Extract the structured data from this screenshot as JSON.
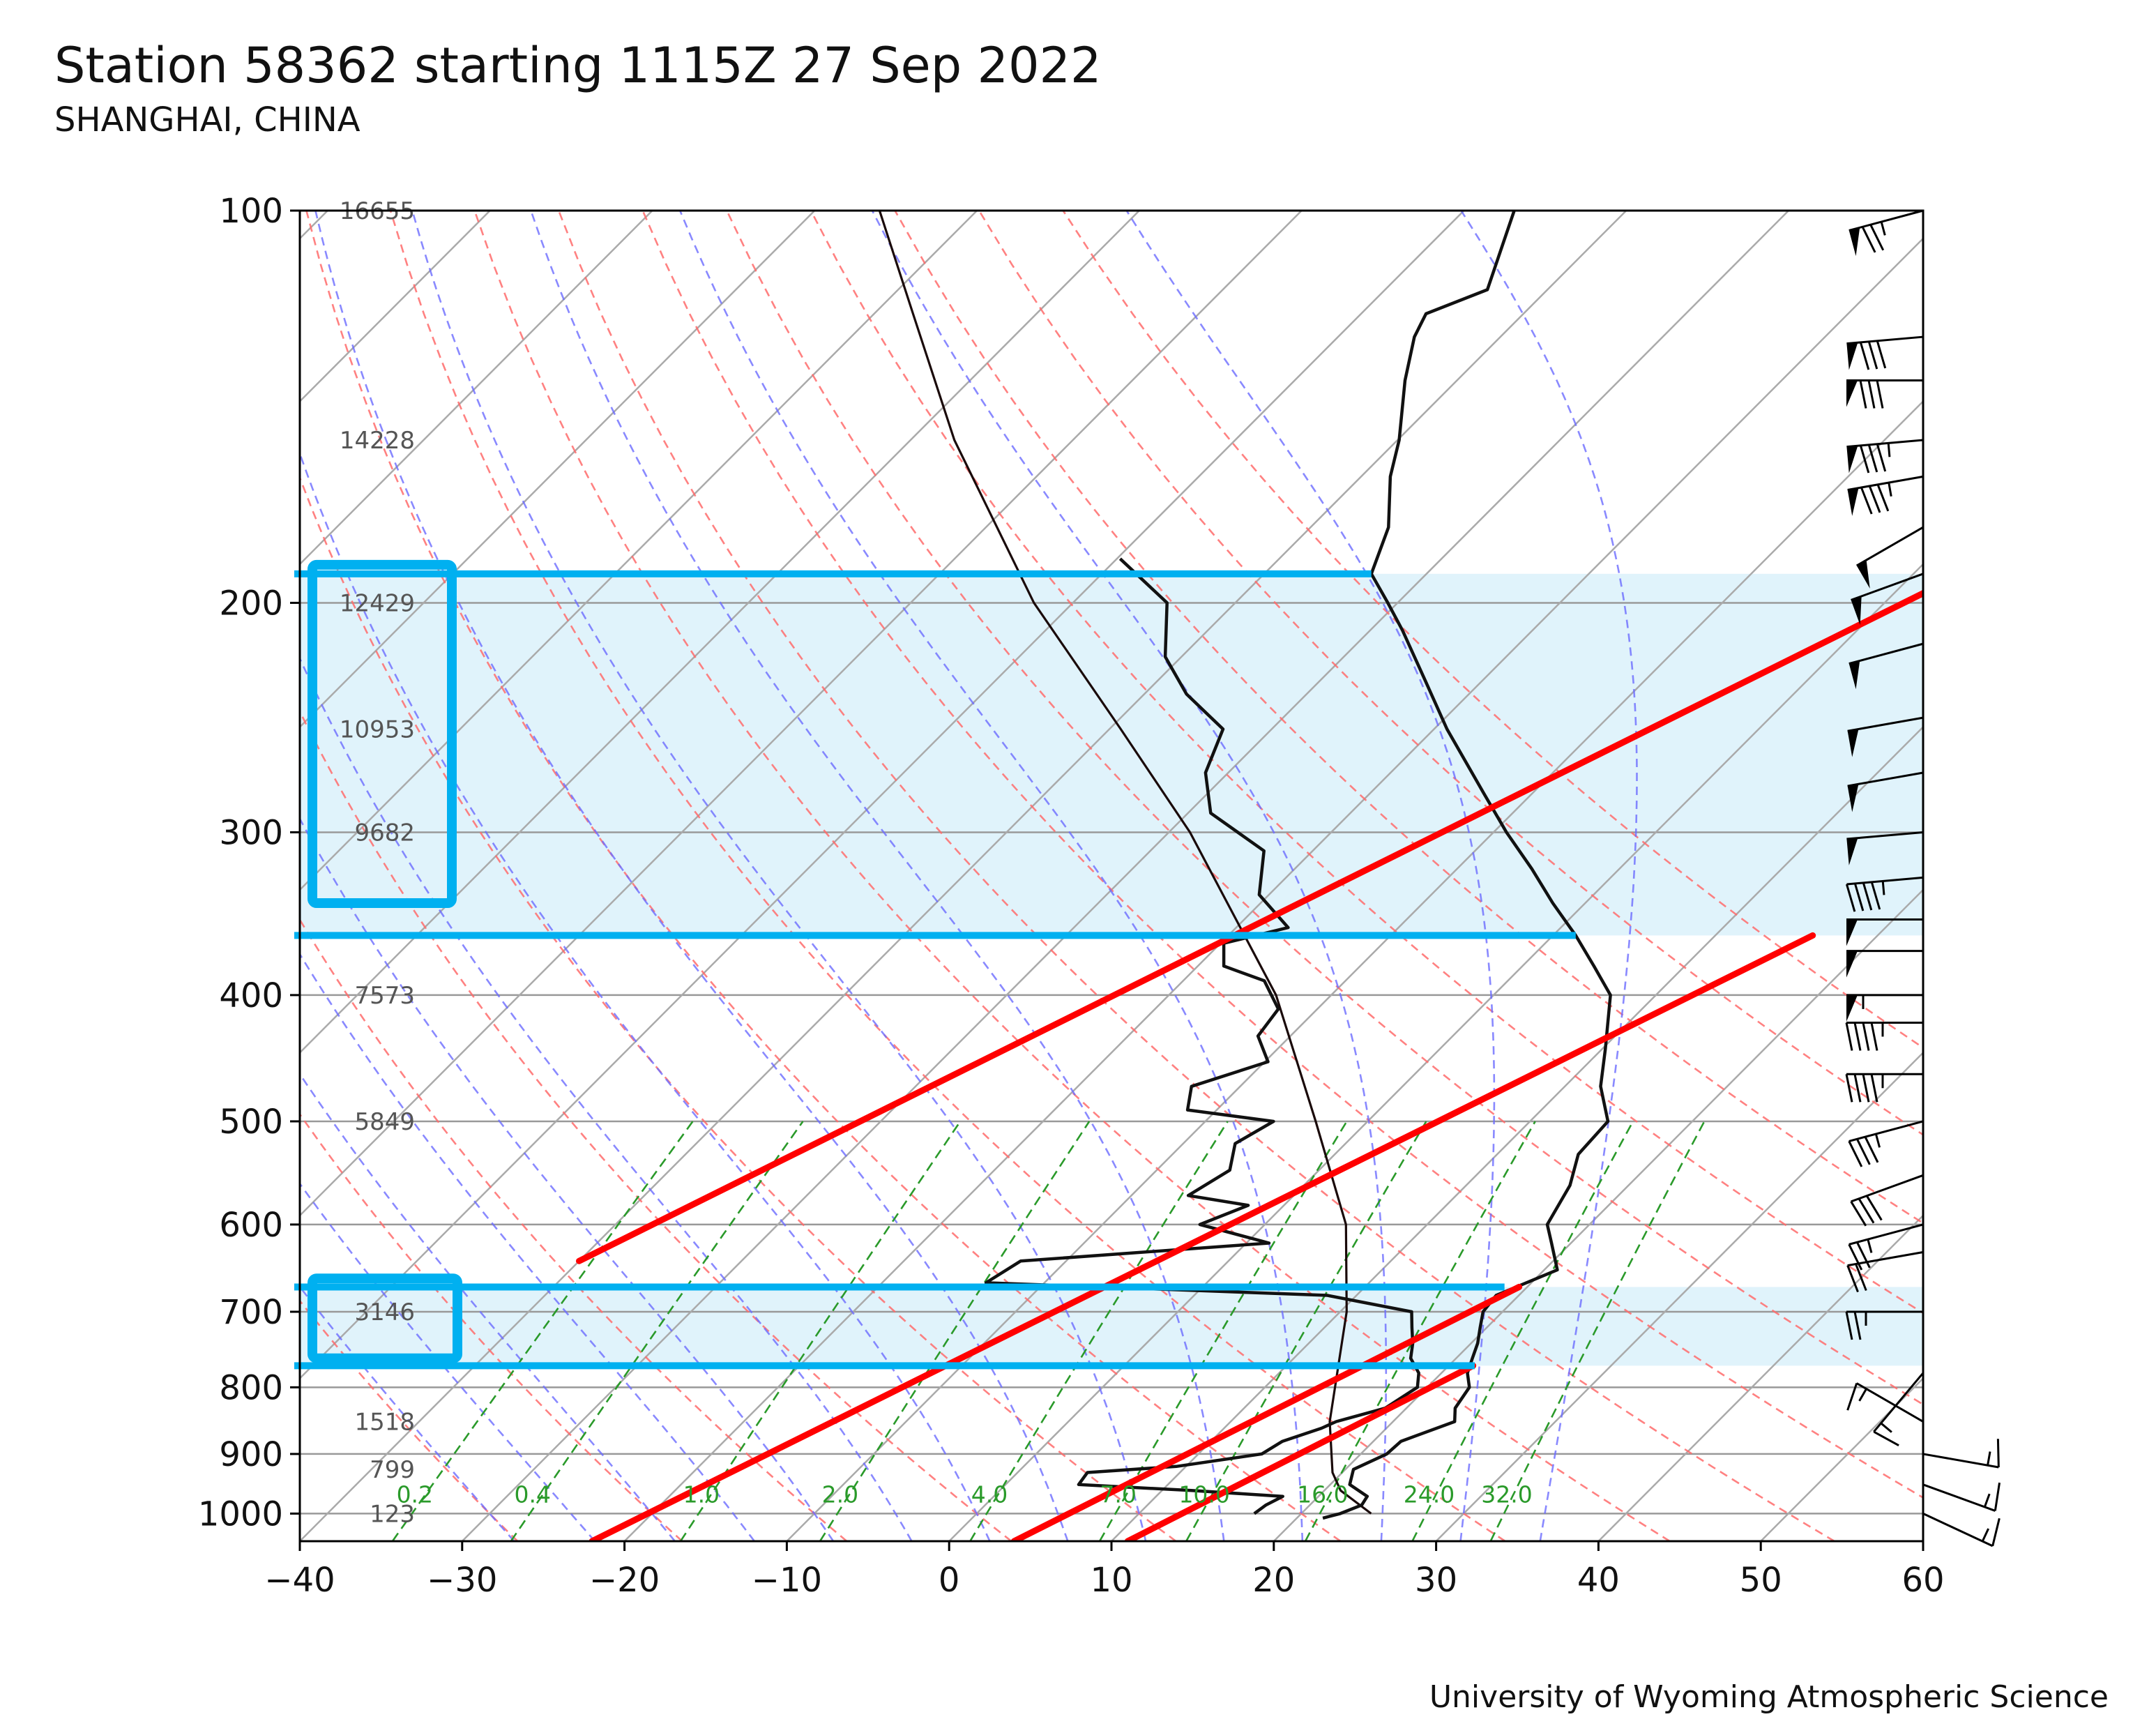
{
  "title": "Station 58362 starting 1115Z 27 Sep 2022",
  "subtitle": "SHANGHAI, CHINA",
  "credit": "University of Wyoming Atmospheric Science",
  "colors": {
    "temp": "#111111",
    "dry_adiabat": "#ff6b6b",
    "moist_adiabat": "#6b6bff",
    "mixing_ratio": "#2a9a2a",
    "isotherm": "#aaaaaa",
    "highlight_box": "#00b0f0",
    "highlight_fill": "#d6effa",
    "annotation_line": "#ff0000"
  },
  "chart_data": {
    "type": "skew-t log-p",
    "title": "Station 58362 starting 1115Z 27 Sep 2022",
    "subtitle": "SHANGHAI, CHINA",
    "x_range": [
      -40,
      60
    ],
    "p_range": [
      1050,
      100
    ],
    "x_ticks": [
      -40,
      -30,
      -20,
      -10,
      0,
      10,
      20,
      30,
      40,
      50,
      60
    ],
    "x_tick_labels": [
      "−40",
      "−30",
      "−20",
      "−10",
      "0",
      "10",
      "20",
      "30",
      "40",
      "50",
      "60"
    ],
    "p_ticks": [
      100,
      200,
      300,
      400,
      500,
      600,
      700,
      800,
      900,
      1000
    ],
    "height_labels": [
      {
        "p": 100,
        "text": "16655"
      },
      {
        "p": 150,
        "text": "14228"
      },
      {
        "p": 200,
        "text": "12429"
      },
      {
        "p": 250,
        "text": "10953"
      },
      {
        "p": 300,
        "text": "9682"
      },
      {
        "p": 400,
        "text": "7573"
      },
      {
        "p": 500,
        "text": "5849"
      },
      {
        "p": 700,
        "text": "3146"
      },
      {
        "p": 850,
        "text": "1518"
      },
      {
        "p": 925,
        "text": "799"
      },
      {
        "p": 1000,
        "text": "123"
      }
    ],
    "mixing_ratio_labels": [
      "0.2",
      "0.4",
      "1.0",
      "2.0",
      "4.0",
      "7.0",
      "10.0",
      "16.0",
      "24.0",
      "32.0"
    ],
    "mixing_ratio_values": [
      0.2,
      0.4,
      1.0,
      2.0,
      4.0,
      7.0,
      10.0,
      16.0,
      24.0,
      32.0
    ],
    "dry_adiabats_theta_c": [
      -30,
      -20,
      -10,
      0,
      10,
      20,
      30,
      40,
      50,
      60,
      70,
      80,
      90,
      100,
      110
    ],
    "moist_adiabats_c": [
      -30,
      -25,
      -20,
      -15,
      -10,
      -5,
      0,
      5,
      10,
      15,
      20,
      25,
      30,
      35
    ],
    "temperature": [
      [
        1008,
        21.6
      ],
      [
        1000,
        22.4
      ],
      [
        985,
        23.2
      ],
      [
        970,
        23.0
      ],
      [
        950,
        21.2
      ],
      [
        925,
        20.5
      ],
      [
        900,
        21.6
      ],
      [
        880,
        21.7
      ],
      [
        850,
        23.8
      ],
      [
        830,
        23.0
      ],
      [
        800,
        22.6
      ],
      [
        780,
        21.6
      ],
      [
        760,
        21.0
      ],
      [
        740,
        20.4
      ],
      [
        720,
        19.6
      ],
      [
        700,
        18.8
      ],
      [
        680,
        18.6
      ],
      [
        650,
        20.8
      ],
      [
        620,
        18.8
      ],
      [
        600,
        17.4
      ],
      [
        560,
        16.4
      ],
      [
        530,
        15.0
      ],
      [
        500,
        14.8
      ],
      [
        470,
        12.2
      ],
      [
        440,
        10.2
      ],
      [
        400,
        7.2
      ],
      [
        380,
        4.4
      ],
      [
        360,
        1.4
      ],
      [
        340,
        -2.0
      ],
      [
        320,
        -5.4
      ],
      [
        300,
        -9.2
      ],
      [
        280,
        -13.0
      ],
      [
        250,
        -19.2
      ],
      [
        230,
        -23.4
      ],
      [
        210,
        -28.0
      ],
      [
        200,
        -30.6
      ],
      [
        190,
        -33.4
      ],
      [
        175,
        -35.2
      ],
      [
        160,
        -38.2
      ],
      [
        150,
        -39.9
      ],
      [
        135,
        -43.2
      ],
      [
        125,
        -45.3
      ],
      [
        120,
        -46.0
      ],
      [
        115,
        -43.7
      ],
      [
        100,
        -46.9
      ]
    ],
    "dewpoint": [
      [
        1000,
        17.1
      ],
      [
        985,
        17.3
      ],
      [
        970,
        17.8
      ],
      [
        960,
        11.8
      ],
      [
        950,
        4.5
      ],
      [
        930,
        4.3
      ],
      [
        920,
        9.4
      ],
      [
        900,
        13.9
      ],
      [
        880,
        14.4
      ],
      [
        860,
        16.0
      ],
      [
        850,
        16.5
      ],
      [
        830,
        18.7
      ],
      [
        800,
        19.4
      ],
      [
        780,
        18.6
      ],
      [
        760,
        17.2
      ],
      [
        740,
        16.4
      ],
      [
        720,
        15.4
      ],
      [
        700,
        14.4
      ],
      [
        680,
        8.2
      ],
      [
        665,
        -13.6
      ],
      [
        640,
        -12.8
      ],
      [
        620,
        1.4
      ],
      [
        600,
        -4.0
      ],
      [
        580,
        -2.2
      ],
      [
        570,
        -6.5
      ],
      [
        545,
        -5.5
      ],
      [
        520,
        -6.8
      ],
      [
        500,
        -5.8
      ],
      [
        490,
        -11.8
      ],
      [
        470,
        -13.0
      ],
      [
        450,
        -9.8
      ],
      [
        430,
        -12.0
      ],
      [
        410,
        -12.4
      ],
      [
        390,
        -15.0
      ],
      [
        380,
        -18.4
      ],
      [
        365,
        -19.8
      ],
      [
        355,
        -16.8
      ],
      [
        335,
        -20.6
      ],
      [
        310,
        -23.0
      ],
      [
        290,
        -28.6
      ],
      [
        270,
        -31.4
      ],
      [
        250,
        -33.0
      ],
      [
        235,
        -37.4
      ],
      [
        220,
        -41.0
      ],
      [
        200,
        -44.2
      ],
      [
        185,
        -49.8
      ]
    ],
    "parcel": [
      [
        1000,
        24.3
      ],
      [
        960,
        21.0
      ],
      [
        930,
        19.4
      ],
      [
        850,
        16.1
      ],
      [
        700,
        10.4
      ],
      [
        600,
        5.0
      ],
      [
        500,
        -3.2
      ],
      [
        400,
        -13.4
      ],
      [
        300,
        -28.7
      ],
      [
        250,
        -39.3
      ],
      [
        200,
        -52.4
      ],
      [
        150,
        -67.3
      ],
      [
        120,
        -77.6
      ],
      [
        100,
        -86.0
      ]
    ],
    "wind_barbs": [
      {
        "p": 100,
        "spd_kt": 75,
        "dir": 285
      },
      {
        "p": 125,
        "spd_kt": 80,
        "dir": 275
      },
      {
        "p": 135,
        "spd_kt": 80,
        "dir": 270
      },
      {
        "p": 150,
        "spd_kt": 85,
        "dir": 275
      },
      {
        "p": 160,
        "spd_kt": 85,
        "dir": 280
      },
      {
        "p": 175,
        "spd_kt": 50,
        "dir": 300
      },
      {
        "p": 190,
        "spd_kt": 50,
        "dir": 290
      },
      {
        "p": 215,
        "spd_kt": 50,
        "dir": 285
      },
      {
        "p": 245,
        "spd_kt": 50,
        "dir": 280
      },
      {
        "p": 270,
        "spd_kt": 50,
        "dir": 280
      },
      {
        "p": 300,
        "spd_kt": 50,
        "dir": 275
      },
      {
        "p": 325,
        "spd_kt": 45,
        "dir": 275
      },
      {
        "p": 350,
        "spd_kt": 50,
        "dir": 270
      },
      {
        "p": 370,
        "spd_kt": 50,
        "dir": 270
      },
      {
        "p": 400,
        "spd_kt": 55,
        "dir": 270
      },
      {
        "p": 420,
        "spd_kt": 45,
        "dir": 270
      },
      {
        "p": 460,
        "spd_kt": 45,
        "dir": 270
      },
      {
        "p": 500,
        "spd_kt": 35,
        "dir": 285
      },
      {
        "p": 550,
        "spd_kt": 30,
        "dir": 290
      },
      {
        "p": 600,
        "spd_kt": 25,
        "dir": 285
      },
      {
        "p": 630,
        "spd_kt": 20,
        "dir": 280
      },
      {
        "p": 700,
        "spd_kt": 25,
        "dir": 270
      },
      {
        "p": 780,
        "spd_kt": 15,
        "dir": 320
      },
      {
        "p": 850,
        "spd_kt": 15,
        "dir": 240
      },
      {
        "p": 900,
        "spd_kt": 15,
        "dir": 80
      },
      {
        "p": 950,
        "spd_kt": 15,
        "dir": 70
      },
      {
        "p": 1000,
        "spd_kt": 15,
        "dir": 65
      }
    ],
    "highlight_layers": [
      {
        "p_top": 190,
        "p_bottom": 360,
        "label_box_heights": [
          "12429",
          "10953",
          "9682"
        ]
      },
      {
        "p_top": 670,
        "p_bottom": 770,
        "label_box_heights": [
          "3146"
        ]
      }
    ],
    "annotation_lines": [
      {
        "from": [
          -40,
          640
        ],
        "to": [
          3,
          190
        ]
      },
      {
        "from": [
          -22,
          1050
        ],
        "to": [
          16,
          360
        ]
      },
      {
        "from": [
          4,
          1050
        ],
        "to": [
          19.5,
          670
        ]
      },
      {
        "from": [
          11,
          1050
        ],
        "to": [
          21.5,
          770
        ]
      }
    ]
  }
}
